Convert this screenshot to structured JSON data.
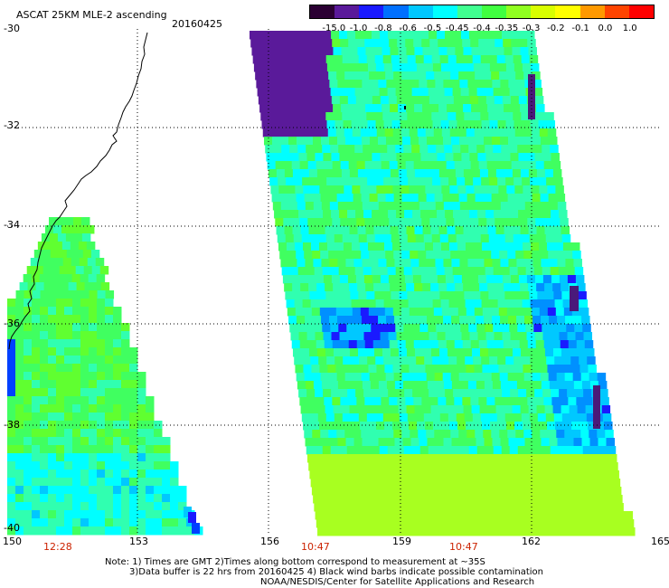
{
  "header": {
    "title": "ASCAT 25KM MLE-2 ascending",
    "date": "20160425"
  },
  "colorbar": {
    "labels": [
      "-15.0",
      "-1.0",
      "-0.8",
      "-0.6",
      "-0.5",
      "-0.45",
      "-0.4",
      "-0.35",
      "-0.3",
      "-0.2",
      "-0.1",
      "0.0",
      "1.0"
    ],
    "colors": [
      "#2b0033",
      "#5a1a9a",
      "#1a1aff",
      "#0070ff",
      "#00c8ff",
      "#00ffff",
      "#40ff90",
      "#40ff40",
      "#90ff20",
      "#d8ff00",
      "#ffff00",
      "#ff9900",
      "#ff4400",
      "#ff0000"
    ]
  },
  "map": {
    "lat_labels": [
      "-30",
      "-32",
      "-34",
      "-36",
      "-38",
      "-40"
    ],
    "lon_labels": [
      "150",
      "153",
      "156",
      "159",
      "162",
      "165"
    ],
    "time_labels": [
      "12:28",
      "10:47",
      "10:47"
    ]
  },
  "footer": {
    "line1": "Note: 1) Times are GMT 2)Times along bottom correspond to measurement at ~35S",
    "line2": "3)Data buffer is 22 hrs from 20160425 4) Black wind barbs indicate possible contamination",
    "line3": "NOAA/NESDIS/Center for Satellite Applications and Research"
  }
}
